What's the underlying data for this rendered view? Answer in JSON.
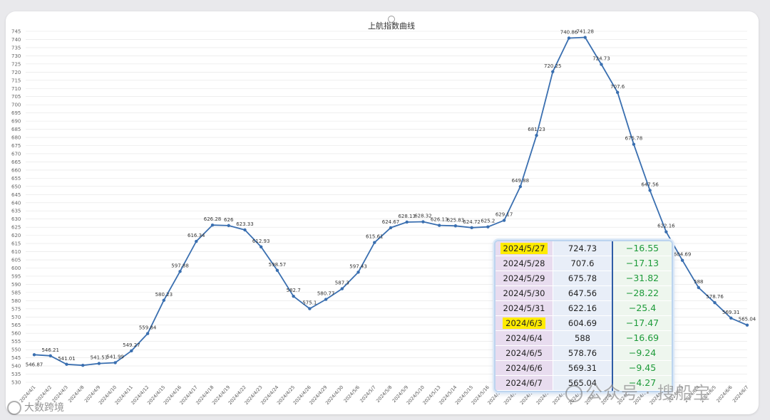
{
  "chart_data": {
    "type": "line",
    "title": "上航指数曲线",
    "xlabel": "",
    "ylabel": "",
    "ylim": [
      530,
      745
    ],
    "ytick_step": 5,
    "grid": true,
    "line_color": "#3a6fb0",
    "x": [
      "2024/4/1",
      "2024/4/2",
      "2024/4/3",
      "2024/4/8",
      "2024/4/9",
      "2024/4/10",
      "2024/4/11",
      "2024/4/12",
      "2024/4/15",
      "2024/4/16",
      "2024/4/17",
      "2024/4/18",
      "2024/4/19",
      "2024/4/22",
      "2024/4/23",
      "2024/4/24",
      "2024/4/25",
      "2024/4/26",
      "2024/4/29",
      "2024/4/30",
      "2024/5/6",
      "2024/5/7",
      "2024/5/8",
      "2024/5/9",
      "2024/5/10",
      "2024/5/13",
      "2024/5/14",
      "2024/5/15",
      "2024/5/16",
      "2024/5/17",
      "2024/5/20",
      "2024/5/21",
      "2024/5/22",
      "2024/5/23",
      "2024/5/24",
      "2024/5/27",
      "2024/5/28",
      "2024/5/29",
      "2024/5/30",
      "2024/5/31",
      "2024/6/3",
      "2024/6/4",
      "2024/6/5",
      "2024/6/6",
      "2024/6/7"
    ],
    "series": [
      {
        "values": [
          546.87,
          546.21,
          541.01,
          540.4,
          541.53,
          541.99,
          549.27,
          559.84,
          580.23,
          597.88,
          616.34,
          626.28,
          626,
          623.33,
          612.93,
          598.57,
          582.7,
          575.1,
          580.77,
          587.3,
          597.43,
          615.61,
          624.67,
          628.13,
          628.32,
          626.13,
          625.83,
          624.72,
          625.2,
          629.17,
          649.88,
          681.23,
          720.25,
          740.86,
          741.28,
          724.73,
          707.6,
          675.78,
          647.56,
          622.16,
          604.69,
          588,
          578.76,
          569.31,
          565.04
        ],
        "labels": [
          "546.87",
          "546.21",
          "541.01",
          "",
          "541.53",
          "541.99",
          "549.27",
          "559.84",
          "580.23",
          "597.88",
          "616.34",
          "626.28",
          "626",
          "623.33",
          "612.93",
          "598.57",
          "582.7",
          "575.1",
          "580.77",
          "587.3",
          "597.43",
          "615.61",
          "624.67",
          "628.13",
          "628.32",
          "626.13",
          "625.83",
          "624.72",
          "625.2",
          "629.17",
          "649.88",
          "681.23",
          "720.25",
          "740.86",
          "741.28",
          "724.73",
          "707.6",
          "675.78",
          "647.56",
          "622.16",
          "604.69",
          "588",
          "578.76",
          "569.31",
          "565.04"
        ]
      }
    ]
  },
  "table": {
    "rows": [
      {
        "date": "2024/5/27",
        "value": "724.73",
        "change": "−16.55",
        "highlight": true
      },
      {
        "date": "2024/5/28",
        "value": "707.6",
        "change": "−17.13",
        "highlight": false
      },
      {
        "date": "2024/5/29",
        "value": "675.78",
        "change": "−31.82",
        "highlight": false
      },
      {
        "date": "2024/5/30",
        "value": "647.56",
        "change": "−28.22",
        "highlight": false
      },
      {
        "date": "2024/5/31",
        "value": "622.16",
        "change": "−25.4",
        "highlight": false
      },
      {
        "date": "2024/6/3",
        "value": "604.69",
        "change": "−17.47",
        "highlight": true
      },
      {
        "date": "2024/6/4",
        "value": "588",
        "change": "−16.69",
        "highlight": false
      },
      {
        "date": "2024/6/5",
        "value": "578.76",
        "change": "−9.24",
        "highlight": false
      },
      {
        "date": "2024/6/6",
        "value": "569.31",
        "change": "−9.45",
        "highlight": false
      },
      {
        "date": "2024/6/7",
        "value": "565.04",
        "change": "−4.27",
        "highlight": false
      }
    ],
    "highlight_color": "#ffeb00",
    "change_color": "#1e9b3a"
  },
  "watermarks": {
    "left": "大数跨境",
    "right": "公众号 · 搜船宝"
  }
}
